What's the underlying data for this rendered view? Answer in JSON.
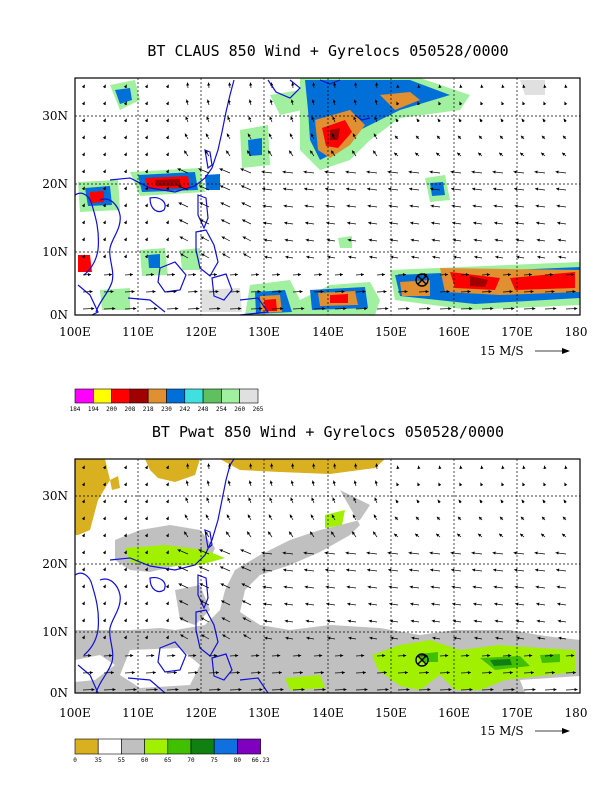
{
  "panels": [
    {
      "title": "BT CLAUS 850 Wind + Gyrelocs 050528/0000",
      "lat_labels": [
        "30N",
        "20N",
        "10N",
        "0N"
      ],
      "lon_labels": [
        "100E",
        "110E",
        "120E",
        "130E",
        "140E",
        "150E",
        "160E",
        "170E",
        "180"
      ],
      "ref_vector": "15 M/S",
      "colorbar_labels": [
        "184",
        "194",
        "200",
        "208",
        "218",
        "230",
        "242",
        "248",
        "254",
        "260",
        "265"
      ],
      "colorbar_colors": [
        "#ff00ff",
        "#ffff00",
        "#ff0000",
        "#a00000",
        "#e09030",
        "#0070d8",
        "#40e0e0",
        "#60c060",
        "#a0f0a0",
        "#e0e0e0"
      ]
    },
    {
      "title": "BT Pwat 850 Wind + Gyrelocs 050528/0000",
      "lat_labels": [
        "30N",
        "20N",
        "10N",
        "0N"
      ],
      "lon_labels": [
        "100E",
        "110E",
        "120E",
        "130E",
        "140E",
        "150E",
        "160E",
        "170E",
        "180"
      ],
      "ref_vector": "15 M/S",
      "colorbar_labels": [
        "0",
        "35",
        "55",
        "60",
        "65",
        "70",
        "75",
        "80",
        "66.23"
      ],
      "colorbar_colors": [
        "#d8b020",
        "#ffffff",
        "#c0c0c0",
        "#a0f000",
        "#40c000",
        "#108010",
        "#1070e0",
        "#8000c0"
      ]
    }
  ],
  "gyre_location": {
    "lon": 155,
    "lat": 5
  },
  "map": {
    "lon_range": [
      100,
      180
    ],
    "lat_range": [
      0,
      35
    ]
  }
}
